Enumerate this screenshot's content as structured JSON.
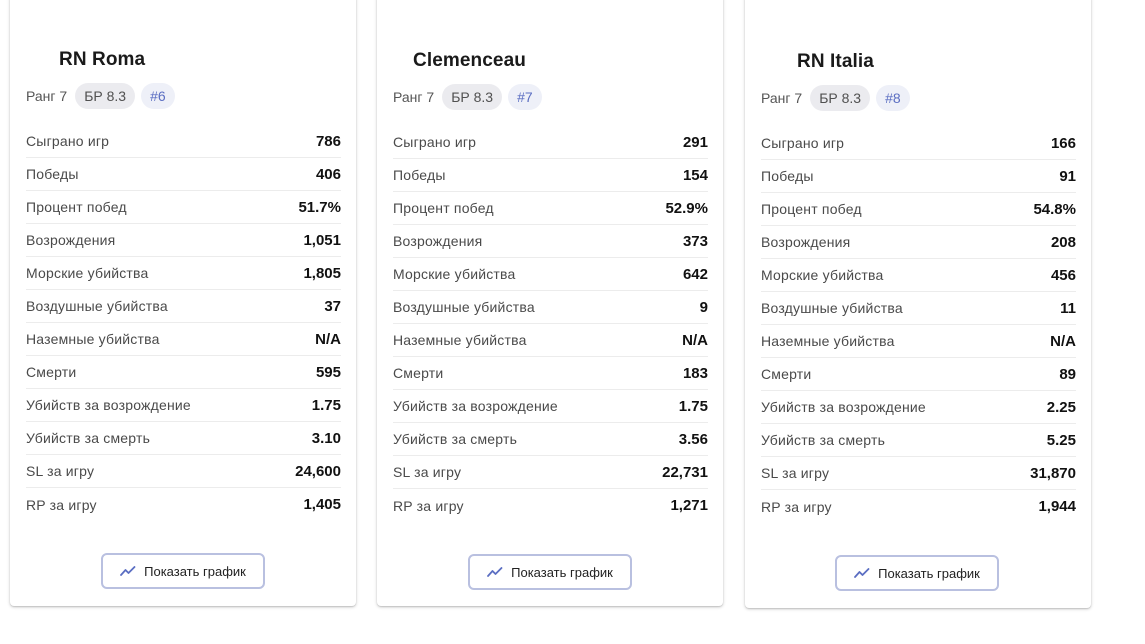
{
  "theme": {
    "accent": "#5b6ec2",
    "button_border": "#b9c0e0",
    "chip_bg": "#ebebef"
  },
  "cards": [
    {
      "name": "RN Roma",
      "rank_label": "Ранг 7",
      "br_label": "БР 8.3",
      "place_label": "#6",
      "stats": [
        {
          "label": "Сыграно игр",
          "value": "786"
        },
        {
          "label": "Победы",
          "value": "406"
        },
        {
          "label": "Процент побед",
          "value": "51.7%"
        },
        {
          "label": "Возрождения",
          "value": "1,051"
        },
        {
          "label": "Морские убийства",
          "value": "1,805"
        },
        {
          "label": "Воздушные убийства",
          "value": "37"
        },
        {
          "label": "Наземные убийства",
          "value": "N/A"
        },
        {
          "label": "Смерти",
          "value": "595"
        },
        {
          "label": "Убийств за возрождение",
          "value": "1.75"
        },
        {
          "label": "Убийств за смерть",
          "value": "3.10"
        },
        {
          "label": "SL за игру",
          "value": "24,600"
        },
        {
          "label": "RP за игру",
          "value": "1,405"
        }
      ],
      "button_label": "Показать график",
      "button_icon": "trending-line-icon"
    },
    {
      "name": "Clemenceau",
      "rank_label": "Ранг 7",
      "br_label": "БР 8.3",
      "place_label": "#7",
      "stats": [
        {
          "label": "Сыграно игр",
          "value": "291"
        },
        {
          "label": "Победы",
          "value": "154"
        },
        {
          "label": "Процент побед",
          "value": "52.9%"
        },
        {
          "label": "Возрождения",
          "value": "373"
        },
        {
          "label": "Морские убийства",
          "value": "642"
        },
        {
          "label": "Воздушные убийства",
          "value": "9"
        },
        {
          "label": "Наземные убийства",
          "value": "N/A"
        },
        {
          "label": "Смерти",
          "value": "183"
        },
        {
          "label": "Убийств за возрождение",
          "value": "1.75"
        },
        {
          "label": "Убийств за смерть",
          "value": "3.56"
        },
        {
          "label": "SL за игру",
          "value": "22,731"
        },
        {
          "label": "RP за игру",
          "value": "1,271"
        }
      ],
      "button_label": "Показать график",
      "button_icon": "trending-line-icon"
    },
    {
      "name": "RN Italia",
      "rank_label": "Ранг 7",
      "br_label": "БР 8.3",
      "place_label": "#8",
      "stats": [
        {
          "label": "Сыграно игр",
          "value": "166"
        },
        {
          "label": "Победы",
          "value": "91"
        },
        {
          "label": "Процент побед",
          "value": "54.8%"
        },
        {
          "label": "Возрождения",
          "value": "208"
        },
        {
          "label": "Морские убийства",
          "value": "456"
        },
        {
          "label": "Воздушные убийства",
          "value": "11"
        },
        {
          "label": "Наземные убийства",
          "value": "N/A"
        },
        {
          "label": "Смерти",
          "value": "89"
        },
        {
          "label": "Убийств за возрождение",
          "value": "2.25"
        },
        {
          "label": "Убийств за смерть",
          "value": "5.25"
        },
        {
          "label": "SL за игру",
          "value": "31,870"
        },
        {
          "label": "RP за игру",
          "value": "1,944"
        }
      ],
      "button_label": "Показать график",
      "button_icon": "trending-line-icon"
    }
  ]
}
